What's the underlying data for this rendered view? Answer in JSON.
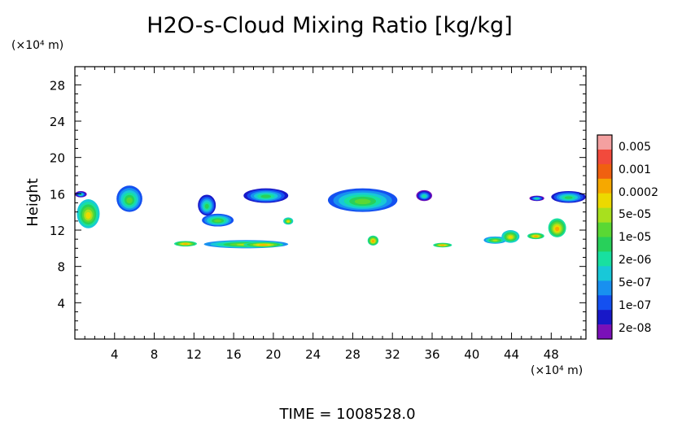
{
  "chart_data": {
    "type": "heatmap",
    "title": "H2O-s-Cloud Mixing Ratio [kg/kg]",
    "y_unit": "(×10⁴ m)",
    "x_unit": "(×10⁴ m)",
    "ylabel": "Height",
    "xlabel": "",
    "footer": "TIME = 1008528.0",
    "xlim": [
      0,
      51.5
    ],
    "ylim": [
      0,
      30
    ],
    "x_ticks": [
      "4",
      "8",
      "12",
      "16",
      "20",
      "24",
      "28",
      "32",
      "36",
      "40",
      "44",
      "48"
    ],
    "y_ticks": [
      "4",
      "8",
      "12",
      "16",
      "20",
      "24",
      "28"
    ],
    "colorbar": {
      "labels": [
        "0.005",
        "0.001",
        "0.0002",
        "5e-05",
        "1e-05",
        "2e-06",
        "5e-07",
        "1e-07",
        "2e-08"
      ],
      "levels_top_to_bottom": [
        "#f4a0a0",
        "#f24a3c",
        "#f06010",
        "#f6a800",
        "#ecd900",
        "#a8e01e",
        "#5ad834",
        "#28d05a",
        "#18e0a0",
        "#18c8d8",
        "#1890f0",
        "#1450f0",
        "#1818c8",
        "#7a10b8"
      ]
    },
    "regions": [
      {
        "x": [
          0,
          1.2
        ],
        "y": [
          15.6,
          16.3
        ],
        "level": "1e-07"
      },
      {
        "x": [
          0.2,
          2.5
        ],
        "y": [
          12.2,
          15.4
        ],
        "level": "5e-05"
      },
      {
        "x": [
          4.2,
          6.8
        ],
        "y": [
          14.0,
          16.9
        ],
        "level": "2e-06"
      },
      {
        "x": [
          10.0,
          12.3
        ],
        "y": [
          10.2,
          10.8
        ],
        "level": "0.0002"
      },
      {
        "x": [
          12.4,
          14.2
        ],
        "y": [
          13.6,
          15.9
        ],
        "level": "5e-07"
      },
      {
        "x": [
          12.8,
          16.0
        ],
        "y": [
          12.4,
          13.8
        ],
        "level": "2e-06"
      },
      {
        "x": [
          13.0,
          21.5
        ],
        "y": [
          10.0,
          10.9
        ],
        "level": "1e-05"
      },
      {
        "x": [
          17.0,
          21.0
        ],
        "y": [
          10.1,
          10.7
        ],
        "level": "0.0002"
      },
      {
        "x": [
          17.0,
          21.5
        ],
        "y": [
          15.0,
          16.6
        ],
        "level": "5e-07"
      },
      {
        "x": [
          21.0,
          22.0
        ],
        "y": [
          12.6,
          13.4
        ],
        "level": "5e-05"
      },
      {
        "x": [
          25.5,
          32.5
        ],
        "y": [
          14.0,
          16.6
        ],
        "level": "2e-06"
      },
      {
        "x": [
          29.5,
          30.6
        ],
        "y": [
          10.3,
          11.4
        ],
        "level": "0.0002"
      },
      {
        "x": [
          34.4,
          36.0
        ],
        "y": [
          15.2,
          16.4
        ],
        "level": "1e-07"
      },
      {
        "x": [
          36.1,
          38.0
        ],
        "y": [
          10.1,
          10.6
        ],
        "level": "0.0002"
      },
      {
        "x": [
          41.2,
          43.5
        ],
        "y": [
          10.5,
          11.3
        ],
        "level": "1e-05"
      },
      {
        "x": [
          43.0,
          44.8
        ],
        "y": [
          10.6,
          12.0
        ],
        "level": "5e-05"
      },
      {
        "x": [
          45.6,
          47.3
        ],
        "y": [
          11.0,
          11.7
        ],
        "level": "0.0002"
      },
      {
        "x": [
          47.7,
          49.5
        ],
        "y": [
          11.2,
          13.3
        ],
        "level": "0.0002"
      },
      {
        "x": [
          45.8,
          47.3
        ],
        "y": [
          15.2,
          15.8
        ],
        "level": "1e-07"
      },
      {
        "x": [
          48.0,
          51.5
        ],
        "y": [
          15.0,
          16.3
        ],
        "level": "5e-07"
      }
    ]
  }
}
